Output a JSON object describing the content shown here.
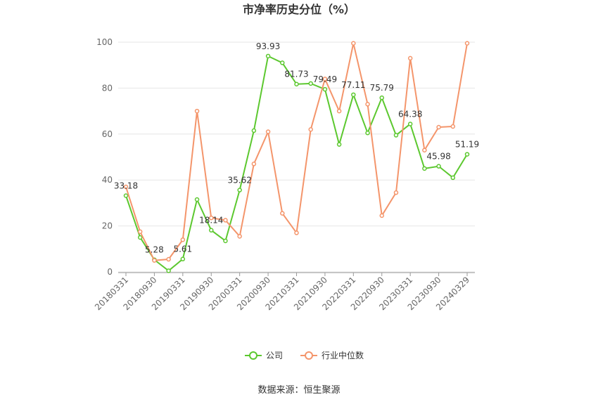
{
  "chart_data": {
    "type": "line",
    "title": "市净率历史分位（%）",
    "categories": [
      "20180331",
      null,
      "20180930",
      null,
      "20190331",
      null,
      "20190930",
      null,
      "20200331",
      null,
      "20200930",
      null,
      "20210331",
      null,
      "20210930",
      null,
      "20220331",
      null,
      "20220930",
      null,
      "20230331",
      null,
      "20230930",
      null,
      "20240329"
    ],
    "series": [
      {
        "name": "公司",
        "color": "#5cc82f",
        "values": [
          33.18,
          15,
          5.28,
          0.5,
          5.61,
          31.5,
          18.14,
          13.5,
          35.62,
          61.5,
          93.93,
          91,
          81.73,
          82,
          79.49,
          55.5,
          77.11,
          60.5,
          75.79,
          59.5,
          64.38,
          45,
          45.98,
          41,
          51.19
        ],
        "value_labels": [
          "33.18",
          null,
          "5.28",
          null,
          "5.61",
          null,
          "18.14",
          null,
          "35.62",
          null,
          "93.93",
          null,
          "81.73",
          null,
          "79.49",
          null,
          "77.11",
          null,
          "75.79",
          null,
          "64.38",
          null,
          "45.98",
          null,
          "51.19"
        ]
      },
      {
        "name": "行业中位数",
        "color": "#f4956b",
        "values": [
          37,
          17.5,
          5,
          5.5,
          14,
          70,
          23.5,
          22.5,
          15.5,
          47,
          61,
          25.5,
          17,
          62,
          84,
          70,
          99.5,
          73,
          24.5,
          34.5,
          93,
          53,
          63,
          63.3,
          99.5
        ]
      }
    ],
    "ylim": [
      0,
      100
    ],
    "yticks": [
      0,
      20,
      40,
      60,
      80,
      100
    ],
    "grid": true,
    "legend": "bottom",
    "source": "数据来源：恒生聚源"
  }
}
